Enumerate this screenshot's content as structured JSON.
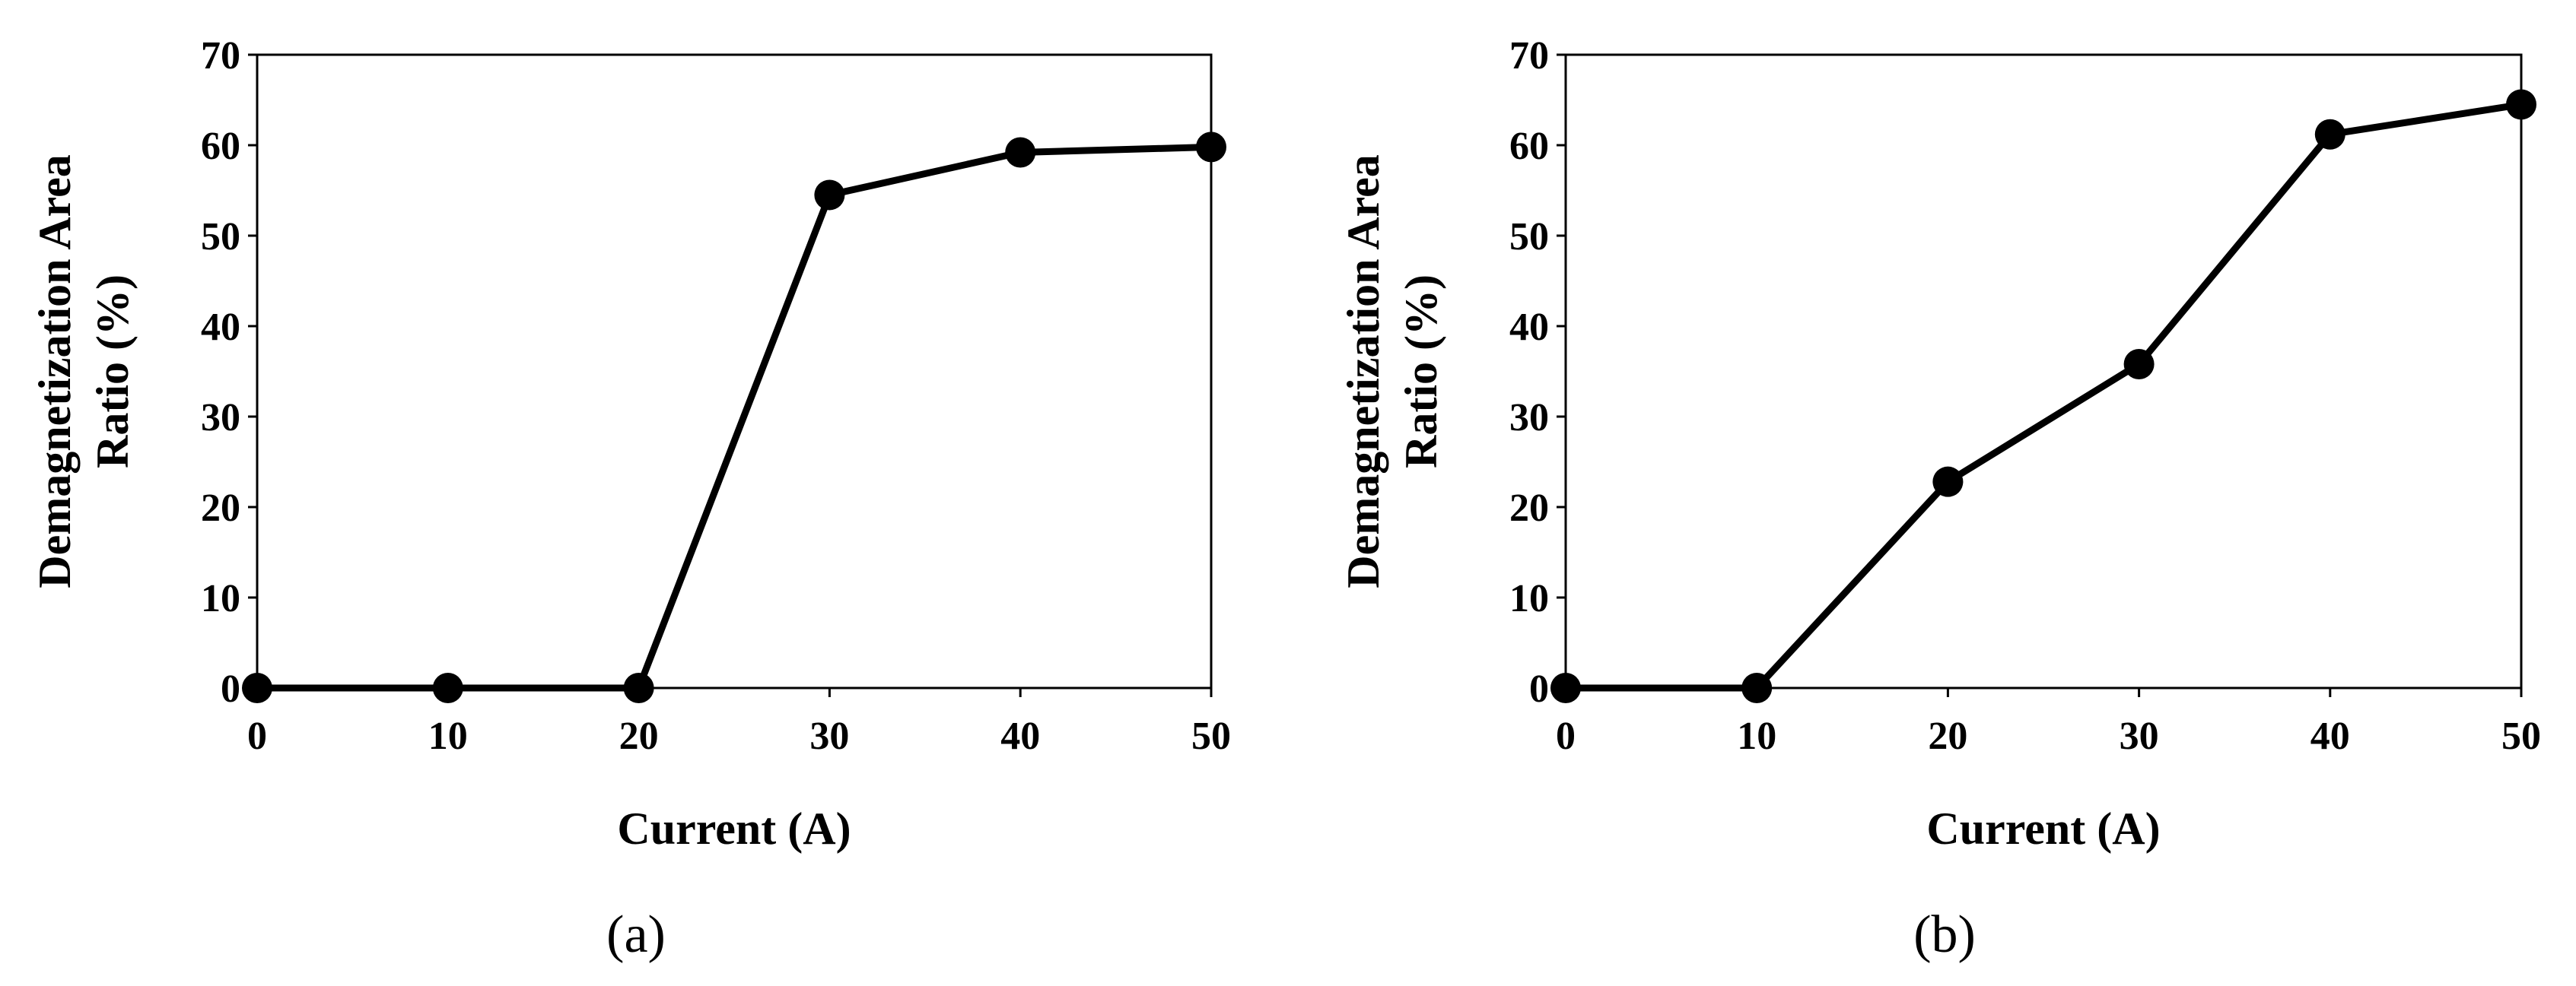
{
  "chart_data": [
    {
      "type": "line",
      "panel_label": "(a)",
      "xlabel": "Current (A)",
      "ylabel_lines": [
        "Demagnetization Area",
        "Ratio (%)"
      ],
      "xlim": [
        0,
        50
      ],
      "ylim": [
        0,
        70
      ],
      "x_ticks": [
        0,
        10,
        20,
        30,
        40,
        50
      ],
      "y_ticks": [
        0,
        10,
        20,
        30,
        40,
        50,
        60,
        70
      ],
      "grid": false,
      "series": [
        {
          "x": [
            0,
            10,
            20,
            30,
            40,
            50
          ],
          "y": [
            0,
            0,
            0,
            54.5,
            59.2,
            59.8
          ],
          "color": "#000000"
        }
      ]
    },
    {
      "type": "line",
      "panel_label": "(b)",
      "xlabel": "Current (A)",
      "ylabel_lines": [
        "Demagnetization Area",
        "Ratio (%)"
      ],
      "xlim": [
        0,
        50
      ],
      "ylim": [
        0,
        70
      ],
      "x_ticks": [
        0,
        10,
        20,
        30,
        40,
        50
      ],
      "y_ticks": [
        0,
        10,
        20,
        30,
        40,
        50,
        60,
        70
      ],
      "grid": false,
      "series": [
        {
          "x": [
            0,
            10,
            20,
            30,
            40,
            50
          ],
          "y": [
            0,
            0,
            22.8,
            35.8,
            61.2,
            64.5
          ],
          "color": "#000000"
        }
      ]
    }
  ]
}
